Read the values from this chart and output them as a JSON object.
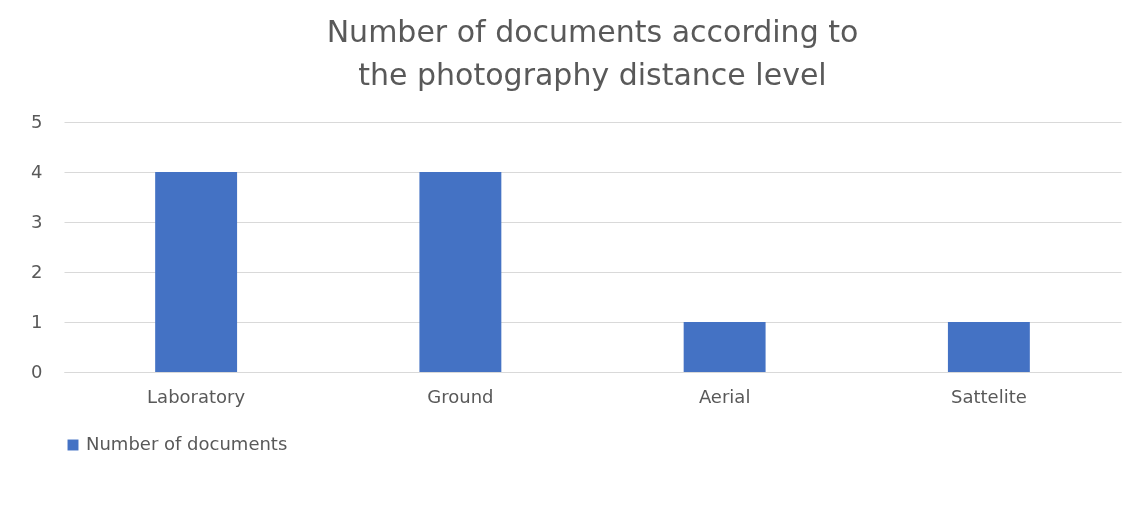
{
  "chart_data": {
    "type": "bar",
    "title": "Number of documents according to the photography distance level",
    "categories": [
      "Laboratory",
      "Ground",
      "Aerial",
      "Sattelite"
    ],
    "series": [
      {
        "name": "Number of documents",
        "color": "#4472c4",
        "values": [
          4,
          4,
          1,
          1
        ]
      }
    ],
    "ylim": [
      0,
      5
    ],
    "yticks": [
      0,
      1,
      2,
      3,
      4,
      5
    ],
    "grid": "y",
    "legend": "bottom"
  }
}
